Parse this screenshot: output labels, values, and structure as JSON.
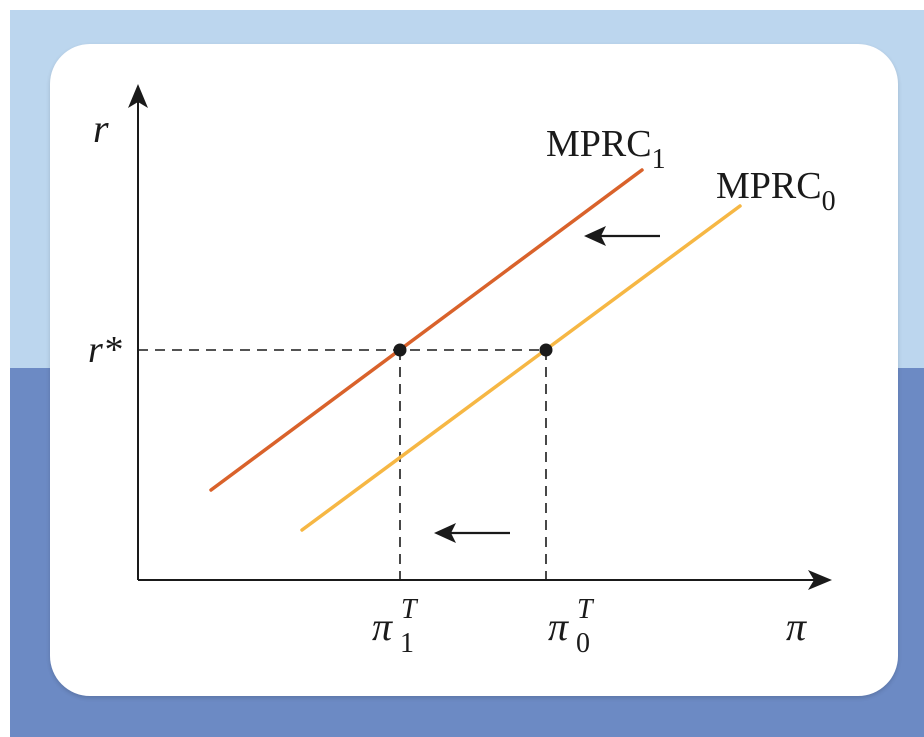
{
  "diagram": {
    "y_axis_label": "r",
    "x_axis_label": "π",
    "r_star_label": "r*",
    "curve1": {
      "base": "MPRC",
      "sub": "1",
      "color": "#d9622b"
    },
    "curve0": {
      "base": "MPRC",
      "sub": "0",
      "color": "#f6b744"
    },
    "pi1_label": {
      "base": "π",
      "sup": "T",
      "sub": "1"
    },
    "pi0_label": {
      "base": "π",
      "sup": "T",
      "sub": "0"
    },
    "colors": {
      "background_top": "#bcd6ee",
      "background_bottom": "#6c8ac4",
      "panel": "#ffffff",
      "axis": "#1a1a1a"
    }
  }
}
